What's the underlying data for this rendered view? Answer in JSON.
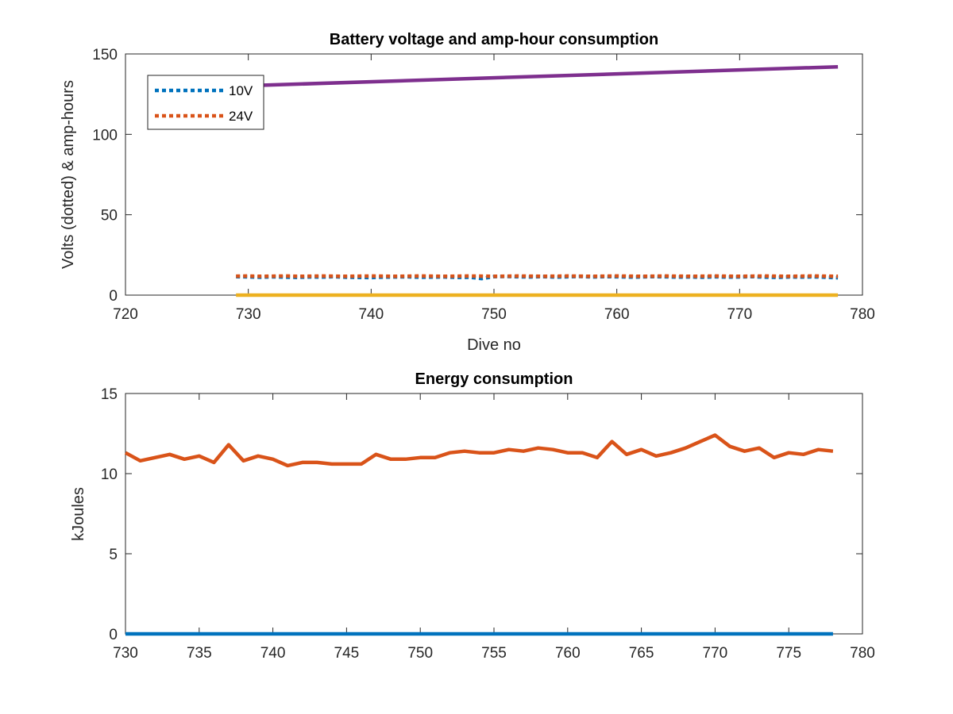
{
  "chart_data": [
    {
      "type": "line",
      "title": "Battery voltage and amp-hour consumption",
      "xlabel": "Dive no",
      "ylabel": "Volts (dotted) & amp-hours",
      "xlim": [
        720,
        780
      ],
      "ylim": [
        0,
        150
      ],
      "xticks": [
        720,
        730,
        740,
        750,
        760,
        770,
        780
      ],
      "yticks": [
        0,
        50,
        100,
        150
      ],
      "legend": {
        "placement": "top-left",
        "entries": [
          "10V",
          "24V"
        ]
      },
      "series": [
        {
          "name": "10V",
          "style": "dotted",
          "color": "#0072BD",
          "x": [
            729,
            730,
            731,
            732,
            733,
            734,
            735,
            736,
            737,
            738,
            739,
            740,
            741,
            742,
            743,
            744,
            745,
            746,
            747,
            748,
            749,
            750,
            751,
            752,
            753,
            754,
            755,
            756,
            757,
            758,
            759,
            760,
            761,
            762,
            763,
            764,
            765,
            766,
            767,
            768,
            769,
            770,
            771,
            772,
            773,
            774,
            775,
            776,
            777,
            778
          ],
          "y": [
            11.5,
            11.3,
            11.1,
            11.4,
            11.2,
            11.0,
            11.3,
            11.2,
            11.5,
            11.1,
            11.0,
            10.9,
            11.2,
            11.3,
            11.4,
            11.1,
            11.2,
            11.3,
            11.0,
            11.1,
            10.3,
            11.5,
            11.6,
            11.4,
            11.3,
            11.5,
            11.2,
            11.4,
            11.6,
            11.3,
            11.5,
            11.4,
            11.2,
            11.3,
            11.5,
            11.4,
            11.2,
            11.3,
            11.1,
            11.4,
            11.2,
            11.3,
            11.5,
            11.2,
            11.0,
            11.3,
            11.2,
            11.4,
            11.1,
            10.8
          ]
        },
        {
          "name": "24V",
          "style": "dotted",
          "color": "#D95319",
          "x": [
            729,
            730,
            731,
            732,
            733,
            734,
            735,
            736,
            737,
            738,
            739,
            740,
            741,
            742,
            743,
            744,
            745,
            746,
            747,
            748,
            749,
            750,
            751,
            752,
            753,
            754,
            755,
            756,
            757,
            758,
            759,
            760,
            761,
            762,
            763,
            764,
            765,
            766,
            767,
            768,
            769,
            770,
            771,
            772,
            773,
            774,
            775,
            776,
            777,
            778
          ],
          "y": [
            11.8,
            11.9,
            11.7,
            11.8,
            11.9,
            11.7,
            11.8,
            11.9,
            11.8,
            11.7,
            11.8,
            11.9,
            11.8,
            11.7,
            11.8,
            11.9,
            11.8,
            11.7,
            11.8,
            11.9,
            11.8,
            11.7,
            11.8,
            11.9,
            11.8,
            11.7,
            11.8,
            11.9,
            11.8,
            11.7,
            11.8,
            11.9,
            11.8,
            11.7,
            11.8,
            11.9,
            11.8,
            11.7,
            11.8,
            11.9,
            11.8,
            11.7,
            11.8,
            11.9,
            11.8,
            11.7,
            11.8,
            11.9,
            11.8,
            11.7
          ]
        },
        {
          "style": "solid",
          "color": "#EDB120",
          "x": [
            729,
            778
          ],
          "y": [
            0,
            0
          ]
        },
        {
          "style": "solid",
          "color": "#7E2F8E",
          "x": [
            729,
            778
          ],
          "y": [
            130,
            142
          ]
        }
      ]
    },
    {
      "type": "line",
      "title": "Energy consumption",
      "xlabel": "",
      "ylabel": "kJoules",
      "xlim": [
        730,
        780
      ],
      "ylim": [
        0,
        15
      ],
      "xticks": [
        730,
        735,
        740,
        745,
        750,
        755,
        760,
        765,
        770,
        775,
        780
      ],
      "yticks": [
        0,
        5,
        10,
        15
      ],
      "series": [
        {
          "style": "solid",
          "color": "#0072BD",
          "x": [
            730,
            778
          ],
          "y": [
            0,
            0
          ]
        },
        {
          "style": "solid",
          "color": "#D95319",
          "x": [
            730,
            731,
            732,
            733,
            734,
            735,
            736,
            737,
            738,
            739,
            740,
            741,
            742,
            743,
            744,
            745,
            746,
            747,
            748,
            749,
            750,
            751,
            752,
            753,
            754,
            755,
            756,
            757,
            758,
            759,
            760,
            761,
            762,
            763,
            764,
            765,
            766,
            767,
            768,
            769,
            770,
            771,
            772,
            773,
            774,
            775,
            776,
            777,
            778
          ],
          "y": [
            11.3,
            10.8,
            11.0,
            11.2,
            10.9,
            11.1,
            10.7,
            11.8,
            10.8,
            11.1,
            10.9,
            10.5,
            10.7,
            10.7,
            10.6,
            10.6,
            10.6,
            11.2,
            10.9,
            10.9,
            11.0,
            11.0,
            11.3,
            11.4,
            11.3,
            11.3,
            11.5,
            11.4,
            11.6,
            11.5,
            11.3,
            11.3,
            11.0,
            12.0,
            11.2,
            11.5,
            11.1,
            11.3,
            11.6,
            12.0,
            12.4,
            11.7,
            11.4,
            11.6,
            11.0,
            11.3,
            11.2,
            11.5,
            11.4
          ]
        }
      ]
    }
  ]
}
